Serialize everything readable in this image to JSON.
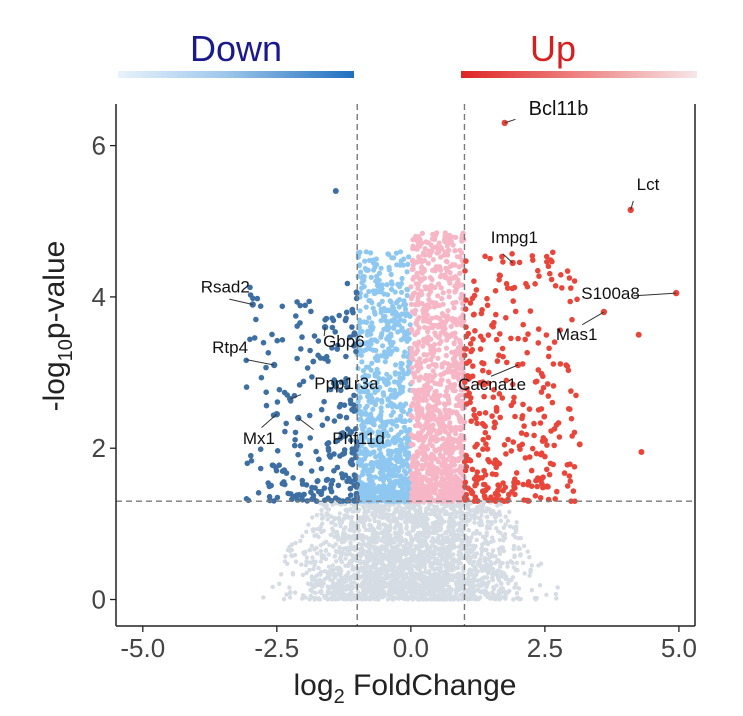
{
  "header": {
    "down_label": "Down",
    "up_label": "Up",
    "down_color": "#1a1a8c",
    "up_color": "#d62020"
  },
  "chart_data": {
    "type": "scatter",
    "title": "",
    "xlabel": "log2 FoldChange",
    "xlabel_main": "log",
    "xlabel_sub": "2",
    "xlabel_rest": " FoldChange",
    "ylabel": "-log10p-value",
    "ylabel_pre": "-log",
    "ylabel_sub": "10",
    "ylabel_post": "p-value",
    "xlim": [
      -5.5,
      5.3
    ],
    "ylim": [
      -0.35,
      6.55
    ],
    "x_ticks": [
      -5.0,
      -2.5,
      0.0,
      2.5,
      5.0
    ],
    "x_tick_labels": [
      "-5.0",
      "-2.5",
      "0.0",
      "2.5",
      "5.0"
    ],
    "y_ticks": [
      0,
      2,
      4,
      6
    ],
    "y_tick_labels": [
      "0",
      "2",
      "4",
      "6"
    ],
    "thresholds": {
      "log2fc": [
        -1,
        1
      ],
      "neg_log10_p": 1.3
    },
    "colors": {
      "down_strong": "#3d6fa3",
      "down_weak": "#8ec8f0",
      "up_weak": "#f7b6c6",
      "up_strong": "#e8463a",
      "not_significant": "#d5dce3",
      "threshold_line": "#7a7a7a"
    },
    "labeled_genes": [
      {
        "gene": "Bcl11b",
        "x": 1.75,
        "y": 6.3
      },
      {
        "gene": "Lct",
        "x": 4.1,
        "y": 5.15
      },
      {
        "gene": "Impg1",
        "x": 1.9,
        "y": 4.45
      },
      {
        "gene": "S100a8",
        "x": 4.95,
        "y": 4.05
      },
      {
        "gene": "Mas1",
        "x": 3.6,
        "y": 3.8
      },
      {
        "gene": "Cacna1e",
        "x": 2.0,
        "y": 3.1
      },
      {
        "gene": "Rsad2",
        "x": -2.95,
        "y": 3.9
      },
      {
        "gene": "Gbp6",
        "x": -1.6,
        "y": 3.6
      },
      {
        "gene": "Rtp4",
        "x": -2.55,
        "y": 3.1
      },
      {
        "gene": "Ppp1r3a",
        "x": -2.25,
        "y": 2.65
      },
      {
        "gene": "Phf11d",
        "x": -2.1,
        "y": 2.4
      },
      {
        "gene": "Mx1",
        "x": -2.5,
        "y": 2.45
      }
    ],
    "highlighted_points": [
      {
        "x": -1.4,
        "y": 5.4
      },
      {
        "x": 4.25,
        "y": 3.5
      },
      {
        "x": 4.3,
        "y": 1.95
      },
      {
        "x": 3.15,
        "y": 2.05
      }
    ]
  }
}
